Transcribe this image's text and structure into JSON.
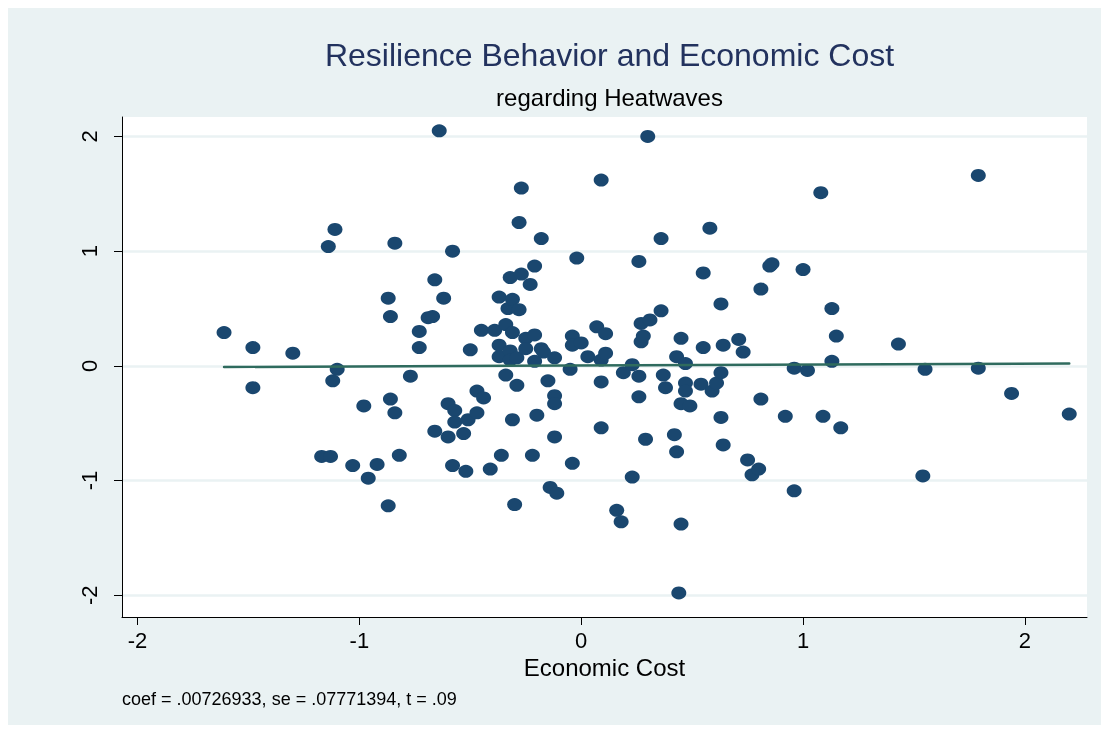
{
  "chart_data": {
    "type": "scatter",
    "title": "Resilience Behavior and Economic Cost",
    "subtitle": "regarding Heatwaves",
    "xlabel": "Economic Cost",
    "annotations": [
      "coef = .00726933, se = .07771394, t = .09"
    ],
    "xlim": [
      -2.07,
      2.28
    ],
    "ylim": [
      -2.19,
      2.17
    ],
    "xticks": [
      -2,
      -1,
      0,
      1,
      2
    ],
    "yticks": [
      -2,
      -1,
      0,
      1,
      2
    ],
    "grid": "y",
    "marker": "circle",
    "series": [
      {
        "color": "#1a476f",
        "x": [
          -1.61,
          -1.48,
          -1.48,
          -1.3,
          -1.17,
          -1.13,
          -1.14,
          -1.11,
          -1.1,
          -1.12,
          -1.03,
          -0.98,
          -0.96,
          -0.92,
          -0.87,
          -0.87,
          -0.86,
          -0.86,
          -0.84,
          -0.84,
          -0.82,
          -0.77,
          -0.73,
          -0.73,
          -0.69,
          -0.67,
          -0.66,
          -0.66,
          -0.64,
          -0.62,
          -0.6,
          -0.6,
          -0.58,
          -0.58,
          -0.57,
          -0.57,
          -0.53,
          -0.52,
          -0.51,
          -0.5,
          -0.47,
          -0.47,
          -0.45,
          -0.44,
          -0.41,
          -0.39,
          -0.37,
          -0.37,
          -0.37,
          -0.36,
          -0.34,
          -0.34,
          -0.33,
          -0.32,
          -0.32,
          -0.32,
          -0.31,
          -0.31,
          -0.31,
          -0.3,
          -0.29,
          -0.29,
          -0.28,
          -0.28,
          -0.27,
          -0.27,
          -0.25,
          -0.25,
          -0.23,
          -0.22,
          -0.21,
          -0.21,
          -0.21,
          -0.2,
          -0.18,
          -0.18,
          -0.17,
          -0.15,
          -0.14,
          -0.12,
          -0.12,
          -0.12,
          -0.12,
          -0.11,
          -0.05,
          -0.04,
          -0.04,
          -0.04,
          -0.02,
          0.0,
          0.03,
          0.07,
          0.09,
          0.09,
          0.09,
          0.09,
          0.11,
          0.11,
          0.16,
          0.18,
          0.19,
          0.23,
          0.23,
          0.26,
          0.26,
          0.26,
          0.27,
          0.27,
          0.28,
          0.29,
          0.3,
          0.31,
          0.36,
          0.36,
          0.37,
          0.38,
          0.42,
          0.43,
          0.43,
          0.45,
          0.44,
          0.45,
          0.45,
          0.47,
          0.47,
          0.47,
          0.49,
          0.54,
          0.55,
          0.55,
          0.58,
          0.59,
          0.61,
          0.63,
          0.63,
          0.63,
          0.64,
          0.64,
          0.71,
          0.73,
          0.75,
          0.77,
          0.8,
          0.81,
          0.81,
          0.85,
          0.86,
          0.92,
          0.96,
          0.96,
          1.0,
          1.02,
          1.08,
          1.09,
          1.13,
          1.13,
          1.15,
          1.17,
          1.43,
          1.54,
          1.55,
          1.79,
          1.79,
          1.94,
          2.2
        ],
        "values": [
          0.29,
          0.16,
          -0.19,
          0.11,
          -0.79,
          -0.79,
          1.04,
          1.19,
          -0.03,
          -0.13,
          -0.87,
          -0.35,
          -0.98,
          -0.86,
          -1.22,
          0.59,
          0.43,
          -0.29,
          -0.41,
          1.07,
          -0.78,
          -0.09,
          0.3,
          0.16,
          0.42,
          0.43,
          0.75,
          -0.57,
          2.05,
          0.59,
          -0.33,
          -0.62,
          1.0,
          -0.87,
          -0.39,
          -0.49,
          -0.59,
          -0.92,
          -0.47,
          0.14,
          -0.41,
          -0.22,
          0.31,
          -0.28,
          -0.9,
          0.31,
          0.6,
          0.18,
          0.08,
          -0.78,
          0.36,
          -0.08,
          0.5,
          0.77,
          0.13,
          0.05,
          0.58,
          0.29,
          -0.47,
          -1.21,
          0.07,
          -0.17,
          1.25,
          0.49,
          1.55,
          0.8,
          0.24,
          0.15,
          0.71,
          -0.78,
          0.87,
          0.27,
          0.04,
          -0.43,
          1.11,
          0.15,
          0.12,
          -0.13,
          -1.06,
          0.07,
          -0.26,
          -0.62,
          -0.33,
          -1.11,
          -0.03,
          -0.85,
          0.26,
          0.18,
          0.94,
          0.2,
          0.08,
          0.34,
          1.62,
          -0.54,
          -0.14,
          0.05,
          0.11,
          0.28,
          -1.26,
          -1.36,
          -0.06,
          0.01,
          -0.97,
          0.91,
          -0.09,
          -0.27,
          0.21,
          0.37,
          0.26,
          -0.64,
          2.0,
          0.4,
          1.11,
          0.48,
          -0.08,
          -0.19,
          -0.6,
          -0.75,
          0.08,
          -1.38,
          -1.98,
          0.24,
          -0.33,
          0.02,
          -0.15,
          -0.22,
          -0.35,
          -0.16,
          0.81,
          0.16,
          1.2,
          -0.22,
          -0.15,
          -0.06,
          0.54,
          -0.45,
          0.18,
          -0.69,
          0.23,
          0.12,
          -0.82,
          -0.95,
          -0.9,
          0.67,
          -0.29,
          0.87,
          0.89,
          -0.44,
          -0.02,
          -1.09,
          0.84,
          -0.04,
          1.51,
          -0.44,
          0.5,
          0.04,
          0.26,
          -0.54,
          0.19,
          -0.96,
          -0.03,
          1.66,
          -0.02,
          -0.24,
          -0.42
        ]
      },
      {
        "type": "line",
        "color": "#2f6b5e",
        "marker": "none",
        "line_style": "solid",
        "x": [
          -1.61,
          2.2
        ],
        "values": [
          -0.01,
          0.02
        ]
      }
    ]
  }
}
